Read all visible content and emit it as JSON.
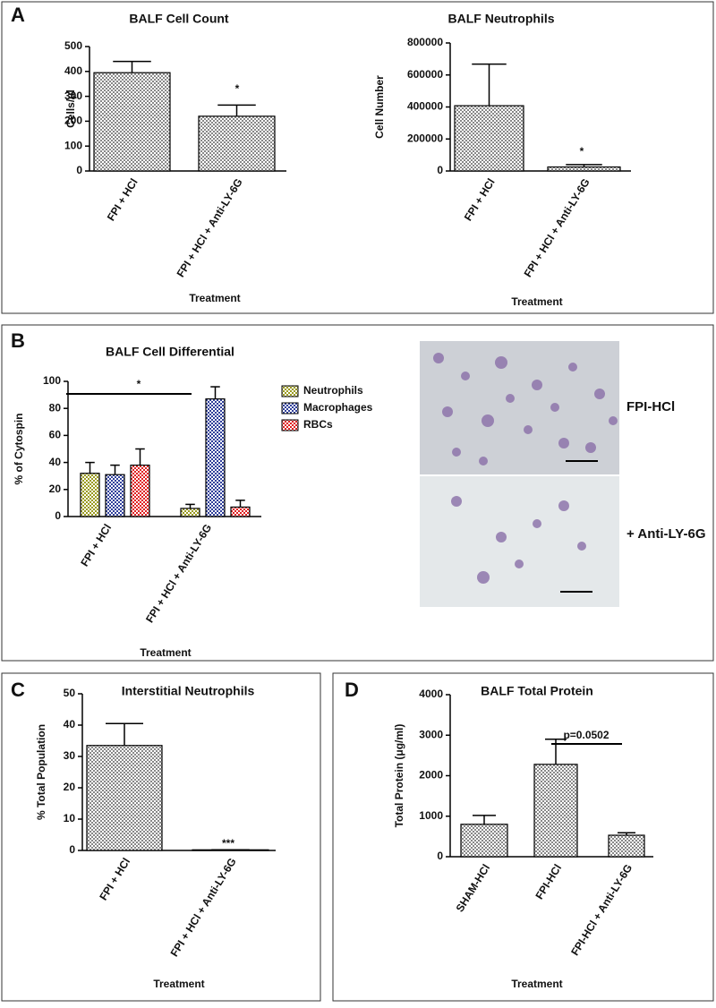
{
  "panel_labels": [
    "A",
    "B",
    "C",
    "D"
  ],
  "micrograph_labels": [
    "FPI-HCl",
    "+ Anti-LY-6G"
  ],
  "chart_data": [
    {
      "type": "bar",
      "title": "BALF Cell Count",
      "y_label": "Cells/μl",
      "x_label": "Treatment",
      "categories": [
        "FPI + HCl",
        "FPI + HCl + Anti-LY-6G"
      ],
      "values": [
        395,
        220
      ],
      "errors": [
        45,
        45
      ],
      "color": "#888888",
      "ylim": [
        0,
        500
      ],
      "yticks": [
        0,
        100,
        200,
        300,
        400,
        500
      ],
      "annotations": [
        "*"
      ]
    },
    {
      "type": "bar",
      "title": "BALF Neutrophils",
      "y_label": "Cell Number",
      "x_label": "Treatment",
      "categories": [
        "FPI + HCl",
        "FPI + HCl + Anti-LY-6G"
      ],
      "values": [
        408000,
        25000
      ],
      "errors": [
        260000,
        15000
      ],
      "color": "#888888",
      "ylim": [
        0,
        800000
      ],
      "yticks": [
        0,
        200000,
        400000,
        600000,
        800000
      ],
      "annotations": [
        "*"
      ]
    },
    {
      "type": "grouped_bar",
      "title": "BALF Cell Differential",
      "y_label": "% of Cytospin",
      "x_label": "Treatment",
      "categories": [
        "FPI + HCl",
        "FPI + HCl + Anti-LY-6G"
      ],
      "series": [
        {
          "name": "Neutrophils",
          "color": "#9a9a1e",
          "values": [
            32,
            6
          ],
          "errors": [
            8,
            3
          ]
        },
        {
          "name": "Macrophages",
          "color": "#2f3f9a",
          "values": [
            31,
            87
          ],
          "errors": [
            7,
            9
          ]
        },
        {
          "name": "RBCs",
          "color": "#e02020",
          "values": [
            38,
            7
          ],
          "errors": [
            12,
            5
          ]
        }
      ],
      "ylim": [
        0,
        100
      ],
      "yticks": [
        0,
        20,
        40,
        60,
        80,
        100
      ],
      "annotations": [
        "*"
      ]
    },
    {
      "type": "bar",
      "title": "Interstitial Neutrophils",
      "y_label": "% Total Population",
      "x_label": "Treatment",
      "categories": [
        "FPI + HCl",
        "FPI + HCl + Anti-LY-6G"
      ],
      "values": [
        33.5,
        0.2
      ],
      "errors": [
        7,
        0
      ],
      "color": "#888888",
      "ylim": [
        0,
        50
      ],
      "yticks": [
        0,
        10,
        20,
        30,
        40,
        50
      ],
      "annotations": [
        "***"
      ]
    },
    {
      "type": "bar",
      "title": "BALF Total Protein",
      "y_label": "Total Protein (μg/ml)",
      "x_label": "Treatment",
      "categories": [
        "SHAM-HCl",
        "FPI-HCl",
        "FPI-HCl + Anti-LY-6G"
      ],
      "values": [
        800,
        2280,
        530
      ],
      "errors": [
        220,
        620,
        60
      ],
      "color": "#888888",
      "ylim": [
        0,
        4000
      ],
      "yticks": [
        0,
        1000,
        2000,
        3000,
        4000
      ],
      "annotations": [
        "p=0.0502"
      ]
    }
  ]
}
